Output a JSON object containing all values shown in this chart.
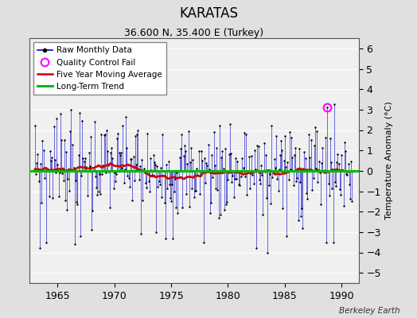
{
  "title": "KARATAS",
  "subtitle": "36.600 N, 35.400 E (Turkey)",
  "ylabel": "Temperature Anomaly (°C)",
  "watermark": "Berkeley Earth",
  "xlim": [
    1962.5,
    1991.5
  ],
  "ylim": [
    -5.5,
    6.5
  ],
  "yticks": [
    -5,
    -4,
    -3,
    -2,
    -1,
    0,
    1,
    2,
    3,
    4,
    5,
    6
  ],
  "xticks": [
    1965,
    1970,
    1975,
    1980,
    1985,
    1990
  ],
  "bg_color": "#e0e0e0",
  "plot_bg_color": "#f0f0f0",
  "grid_color": "#ffffff",
  "line_color": "#0000cc",
  "marker_color": "#000000",
  "ma_color": "#cc0000",
  "trend_color": "#00bb00",
  "qc_color": "#ff00ff",
  "qc_point_year": 1988.75,
  "qc_point_val": 3.1,
  "trend_intercept": 0.0,
  "legend_loc": "upper left",
  "start_year": 1963,
  "end_year": 1991,
  "seed": 7
}
